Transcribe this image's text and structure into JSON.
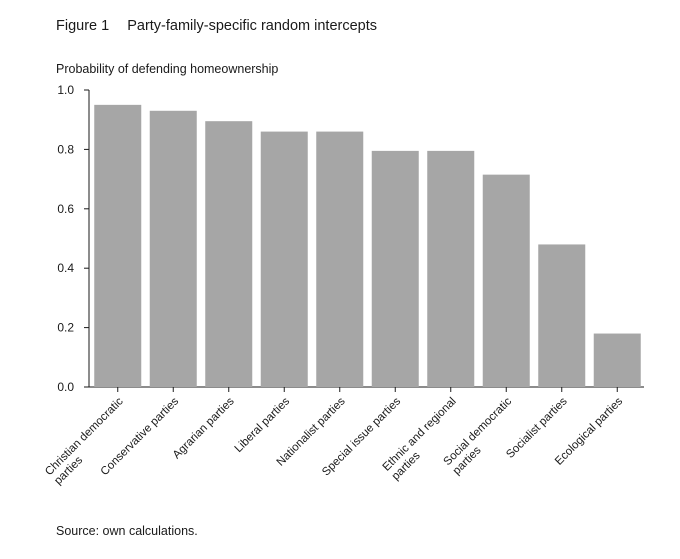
{
  "figure": {
    "label": "Figure 1",
    "title": "Party-family-specific random intercepts",
    "source": "Source: own calculations."
  },
  "chart_data": {
    "type": "bar",
    "title": "Party-family-specific random intercepts",
    "ylabel": "Probability of defending homeownership",
    "xlabel": "",
    "ylim": [
      0,
      1.0
    ],
    "yticks": [
      "0.0",
      "0.2",
      "0.4",
      "0.6",
      "0.8",
      "1.0"
    ],
    "categories": [
      [
        "Christian democratic",
        "parties"
      ],
      [
        "Conservative parties"
      ],
      [
        "Agrarian parties"
      ],
      [
        "Liberal parties"
      ],
      [
        "Nationalist parties"
      ],
      [
        "Special issue parties"
      ],
      [
        "Ethnic and regional",
        "parties"
      ],
      [
        "Social democratic",
        "parties"
      ],
      [
        "Socialist parties"
      ],
      [
        "Ecological parties"
      ]
    ],
    "values": [
      0.95,
      0.93,
      0.895,
      0.86,
      0.86,
      0.795,
      0.795,
      0.715,
      0.48,
      0.18
    ],
    "bar_color": "#a6a6a6",
    "grid": false
  }
}
